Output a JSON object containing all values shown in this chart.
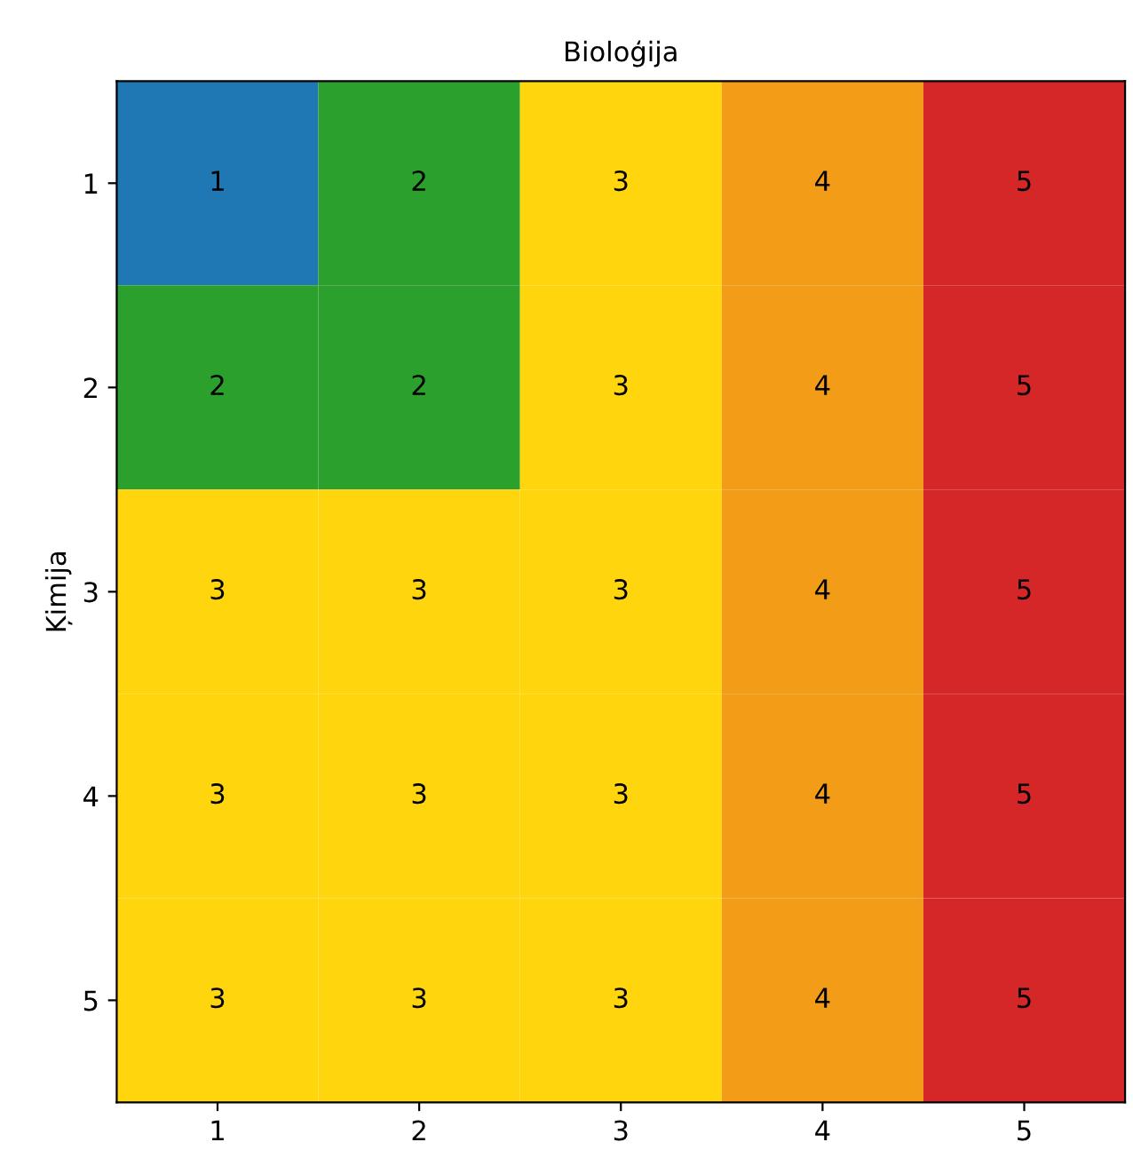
{
  "chart_data": {
    "type": "heatmap",
    "title": "Bioloģija",
    "ylabel": "Ķimija",
    "categories": [
      "1",
      "2",
      "3",
      "4",
      "5"
    ],
    "y_categories": [
      "1",
      "2",
      "3",
      "4",
      "5"
    ],
    "cells": [
      [
        1,
        2,
        3,
        4,
        5
      ],
      [
        2,
        2,
        3,
        4,
        5
      ],
      [
        3,
        3,
        3,
        4,
        5
      ],
      [
        3,
        3,
        3,
        4,
        5
      ],
      [
        3,
        3,
        3,
        4,
        5
      ]
    ],
    "colors": [
      "#1f77b4",
      "#2ca02c",
      "#ffd50e",
      "#f39c17",
      "#d62728"
    ],
    "data_labels": true,
    "grid": false
  }
}
